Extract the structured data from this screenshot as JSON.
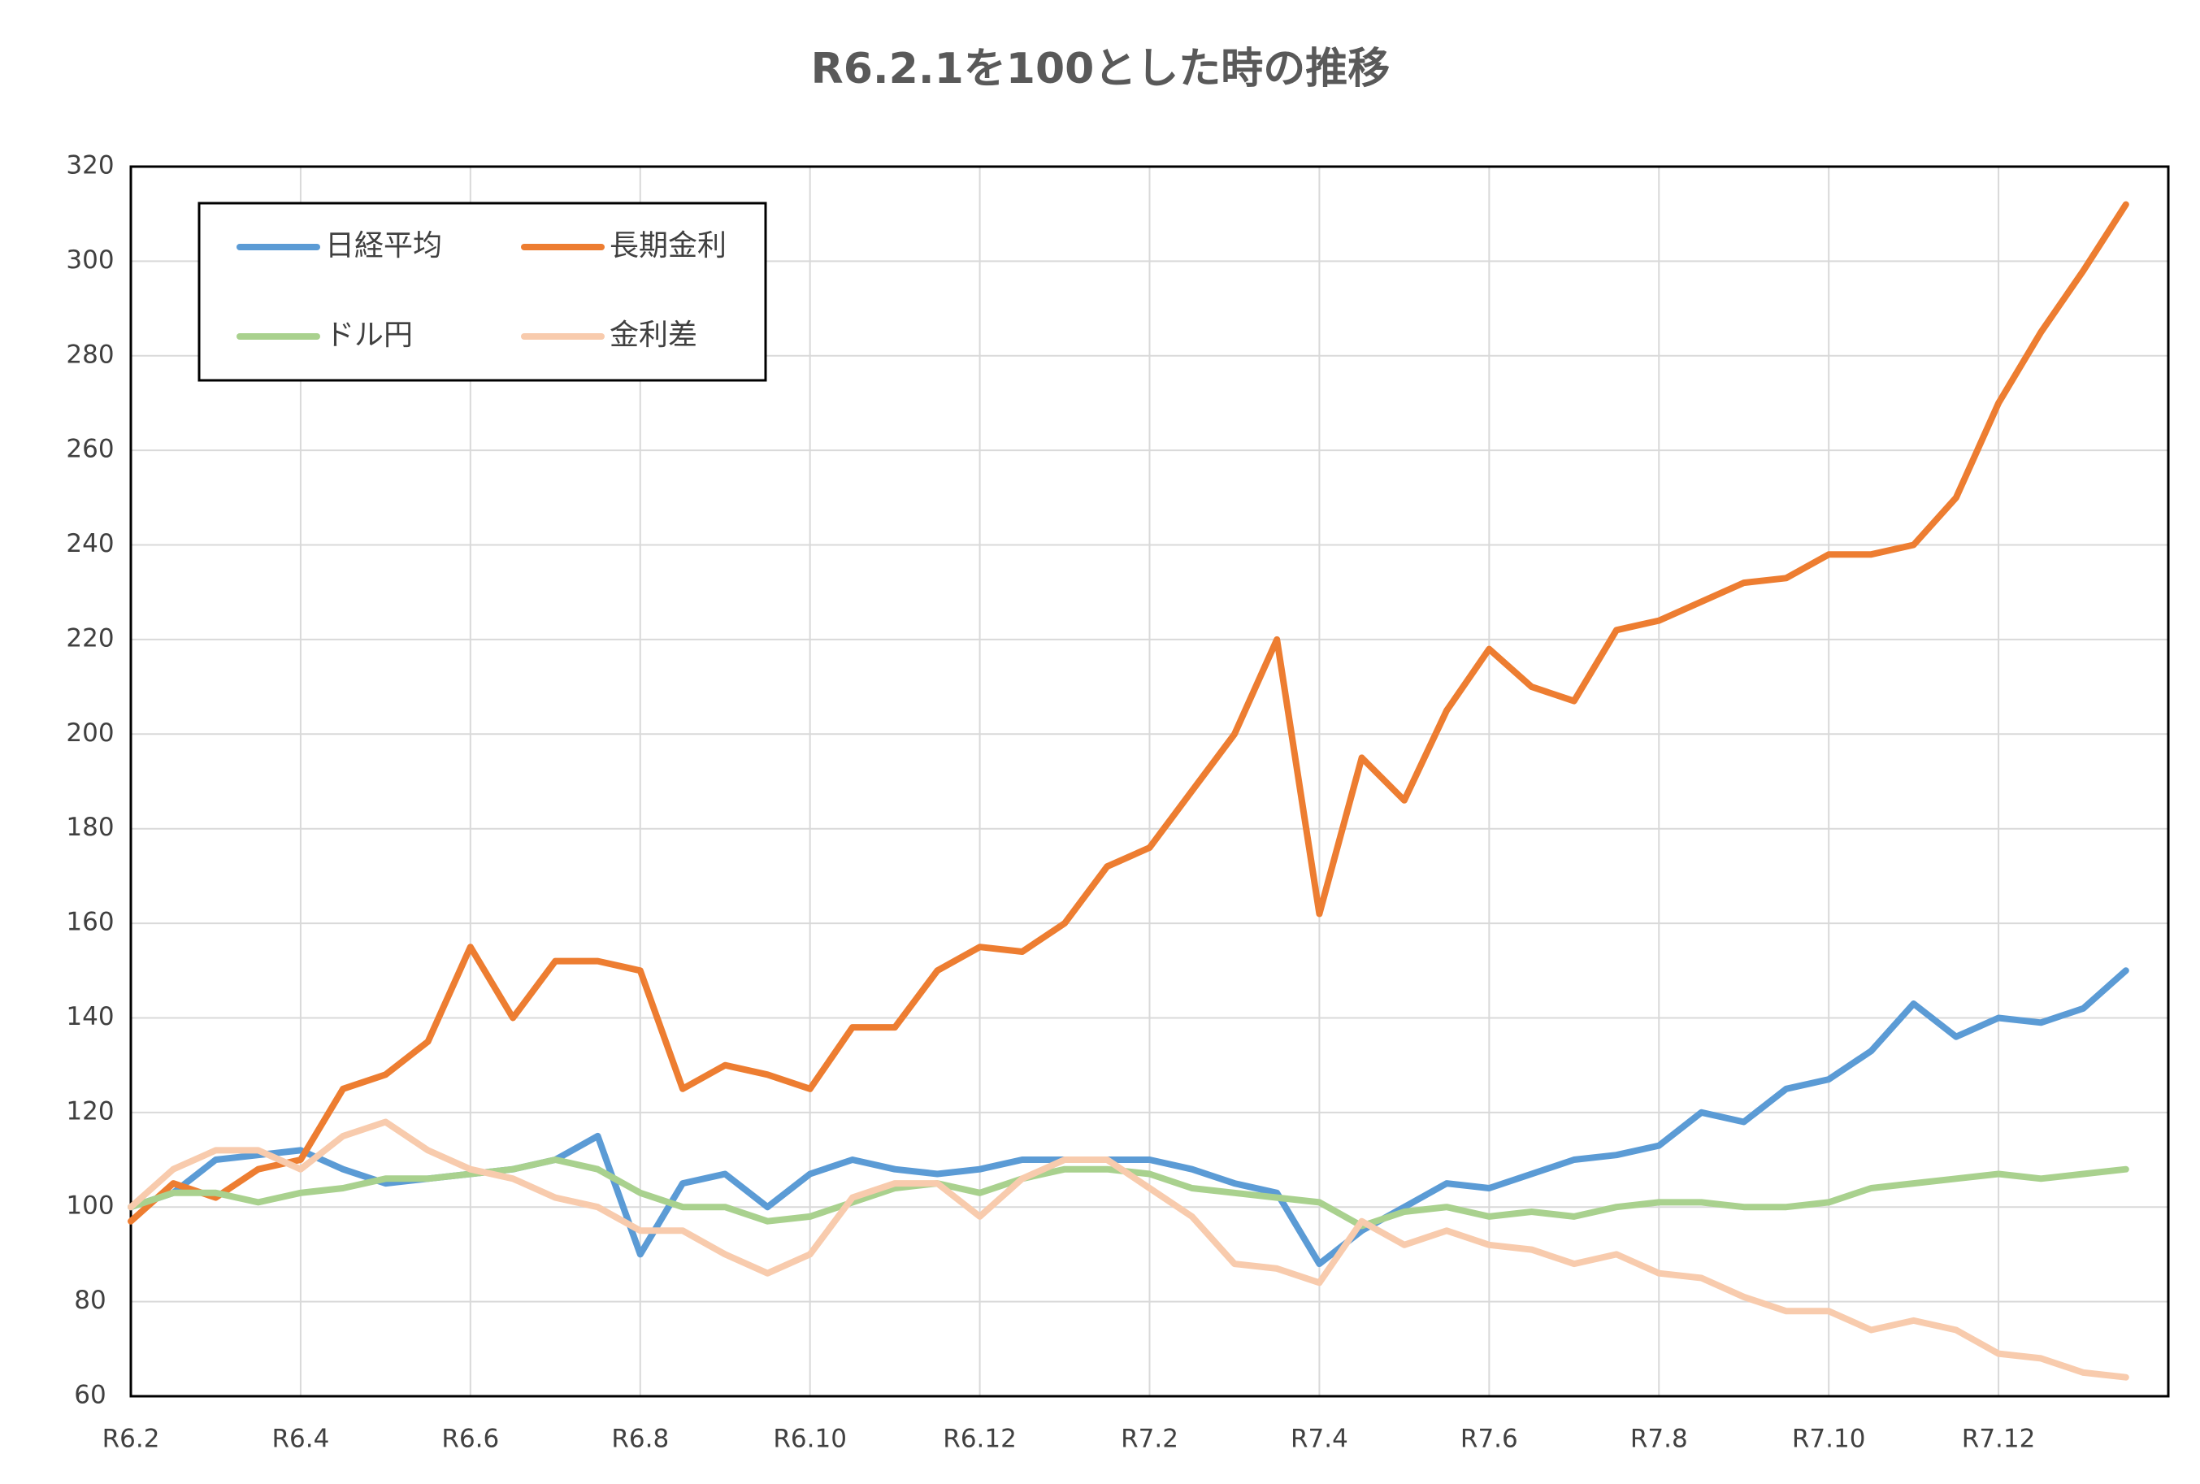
{
  "chart_data": {
    "type": "line",
    "title": "R6.2.1を100とした時の推移",
    "categories": [
      "R6.2",
      null,
      null,
      null,
      "R6.4",
      null,
      null,
      null,
      "R6.6",
      null,
      null,
      null,
      "R6.8",
      null,
      null,
      null,
      "R6.10",
      null,
      null,
      null,
      "R6.12",
      null,
      null,
      null,
      "R7.2",
      null,
      null,
      null,
      "R7.4",
      null,
      null,
      null,
      "R7.6",
      null,
      null,
      null,
      "R7.8",
      null,
      null,
      null,
      "R7.10",
      null,
      null,
      null,
      "R7.12",
      null,
      null,
      null
    ],
    "series": [
      {
        "name": "日経平均",
        "color": "#5b9bd5",
        "values": [
          100,
          103,
          110,
          111,
          112,
          108,
          105,
          106,
          107,
          108,
          110,
          115,
          90,
          105,
          107,
          100,
          107,
          110,
          108,
          107,
          108,
          110,
          110,
          110,
          110,
          108,
          105,
          103,
          88,
          95,
          100,
          105,
          104,
          107,
          110,
          111,
          113,
          120,
          118,
          125,
          127,
          133,
          143,
          136,
          140,
          139,
          142,
          150
        ]
      },
      {
        "name": "長期金利",
        "color": "#ed7d31",
        "values": [
          97,
          105,
          102,
          108,
          110,
          125,
          128,
          135,
          155,
          140,
          152,
          152,
          150,
          125,
          130,
          128,
          125,
          138,
          138,
          150,
          155,
          154,
          160,
          172,
          176,
          188,
          200,
          220,
          162,
          195,
          186,
          205,
          218,
          210,
          207,
          222,
          224,
          228,
          232,
          233,
          238,
          238,
          240,
          250,
          270,
          285,
          298,
          312
        ]
      },
      {
        "name": "ドル円",
        "color": "#a9d18e",
        "values": [
          100,
          103,
          103,
          101,
          103,
          104,
          106,
          106,
          107,
          108,
          110,
          108,
          103,
          100,
          100,
          97,
          98,
          101,
          104,
          105,
          103,
          106,
          108,
          108,
          107,
          104,
          103,
          102,
          101,
          96,
          99,
          100,
          98,
          99,
          98,
          100,
          101,
          101,
          100,
          100,
          101,
          104,
          105,
          106,
          107,
          106,
          107,
          108
        ]
      },
      {
        "name": "金利差",
        "color": "#f8cbad",
        "values": [
          100,
          108,
          112,
          112,
          108,
          115,
          118,
          112,
          108,
          106,
          102,
          100,
          95,
          95,
          90,
          86,
          90,
          102,
          105,
          105,
          98,
          106,
          110,
          110,
          104,
          98,
          88,
          87,
          84,
          97,
          92,
          95,
          92,
          91,
          88,
          90,
          86,
          85,
          81,
          78,
          78,
          74,
          76,
          74,
          69,
          68,
          65,
          64
        ]
      }
    ],
    "ylim": [
      60,
      320
    ],
    "yticks": [
      60,
      80,
      100,
      120,
      140,
      160,
      180,
      200,
      220,
      240,
      260,
      280,
      300,
      320
    ],
    "grid": true,
    "legend": "upper left"
  }
}
